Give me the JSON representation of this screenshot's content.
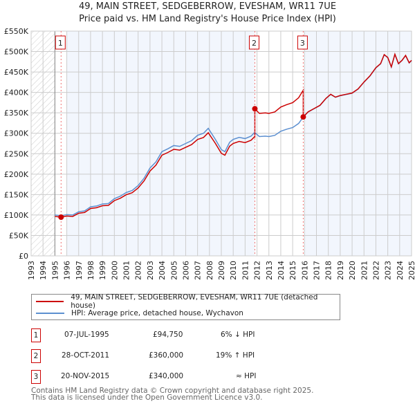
{
  "chart_data": {
    "type": "line",
    "title": "49, MAIN STREET, SEDGEBERROW, EVESHAM, WR11 7UE",
    "subtitle": "Price paid vs. HM Land Registry's House Price Index (HPI)",
    "xlim": [
      1993,
      2025
    ],
    "ylim": [
      0,
      550000
    ],
    "x_ticks": [
      "1993",
      "1994",
      "1995",
      "1996",
      "1997",
      "1998",
      "1999",
      "2000",
      "2001",
      "2002",
      "2003",
      "2004",
      "2005",
      "2006",
      "2007",
      "2008",
      "2009",
      "2010",
      "2011",
      "2012",
      "2013",
      "2014",
      "2015",
      "2016",
      "2017",
      "2018",
      "2019",
      "2020",
      "2021",
      "2022",
      "2023",
      "2024",
      "2025"
    ],
    "y_ticks": [
      {
        "v": 0,
        "label": "£0"
      },
      {
        "v": 50000,
        "label": "£50K"
      },
      {
        "v": 100000,
        "label": "£100K"
      },
      {
        "v": 150000,
        "label": "£150K"
      },
      {
        "v": 200000,
        "label": "£200K"
      },
      {
        "v": 250000,
        "label": "£250K"
      },
      {
        "v": 300000,
        "label": "£300K"
      },
      {
        "v": 350000,
        "label": "£350K"
      },
      {
        "v": 400000,
        "label": "£400K"
      },
      {
        "v": 450000,
        "label": "£450K"
      },
      {
        "v": 500000,
        "label": "£500K"
      },
      {
        "v": 550000,
        "label": "£550K"
      }
    ],
    "grid": true,
    "series": [
      {
        "name": "49, MAIN STREET, SEDGEBERROW, EVESHAM, WR11 7UE (detached house)",
        "color": "#cc0000"
      },
      {
        "name": "HPI: Average price, detached house, Wychavon",
        "color": "#5b8fd0",
        "x": [
          1995.0,
          1995.5,
          1996.0,
          1996.5,
          1997.0,
          1997.5,
          1998.0,
          1998.5,
          1999.0,
          1999.5,
          2000.0,
          2000.5,
          2001.0,
          2001.5,
          2002.0,
          2002.5,
          2003.0,
          2003.5,
          2004.0,
          2004.5,
          2005.0,
          2005.5,
          2006.0,
          2006.5,
          2007.0,
          2007.5,
          2007.9,
          2008.5,
          2009.0,
          2009.3,
          2009.7,
          2010.0,
          2010.5,
          2011.0,
          2011.5,
          2011.8,
          2012.2,
          2012.7,
          2013.0,
          2013.5,
          2014.0,
          2014.5,
          2015.0,
          2015.5,
          2015.9,
          2016.3,
          2016.8,
          2017.3,
          2017.8,
          2018.2,
          2018.6,
          2019.0,
          2019.5,
          2020.0,
          2020.5,
          2021.0,
          2021.5,
          2022.0,
          2022.4,
          2022.7,
          2023.0,
          2023.3,
          2023.6,
          2023.9,
          2024.2,
          2024.5,
          2024.8,
          2025.0
        ],
        "y": [
          100000,
          98000,
          101000,
          100000,
          108000,
          110000,
          120000,
          122000,
          127000,
          128000,
          140000,
          146000,
          155000,
          160000,
          172000,
          190000,
          215000,
          230000,
          255000,
          262000,
          270000,
          268000,
          275000,
          282000,
          295000,
          300000,
          312000,
          285000,
          260000,
          255000,
          278000,
          285000,
          290000,
          287000,
          293000,
          302000,
          292000,
          293000,
          292000,
          295000,
          305000,
          310000,
          314000,
          324000,
          340000,
          352000,
          360000,
          368000,
          385000,
          395000,
          388000,
          392000,
          395000,
          398000,
          408000,
          425000,
          440000,
          460000,
          470000,
          492000,
          485000,
          462000,
          493000,
          470000,
          478000,
          490000,
          472000,
          478000
        ]
      }
    ],
    "sales": [
      {
        "id": "1",
        "x": 1995.52,
        "date": "07-JUL-1995",
        "price": 94750,
        "price_label": "£94,750",
        "hpi_label": "6% ↓ HPI"
      },
      {
        "id": "2",
        "x": 2011.82,
        "date": "28-OCT-2011",
        "price": 360000,
        "price_label": "£360,000",
        "hpi_label": "19% ↑ HPI"
      },
      {
        "id": "3",
        "x": 2015.89,
        "date": "20-NOV-2015",
        "price": 340000,
        "price_label": "£340,000",
        "hpi_label": "≈ HPI"
      }
    ],
    "footer": [
      "Contains HM Land Registry data © Crown copyright and database right 2025.",
      "This data is licensed under the Open Government Licence v3.0."
    ]
  }
}
